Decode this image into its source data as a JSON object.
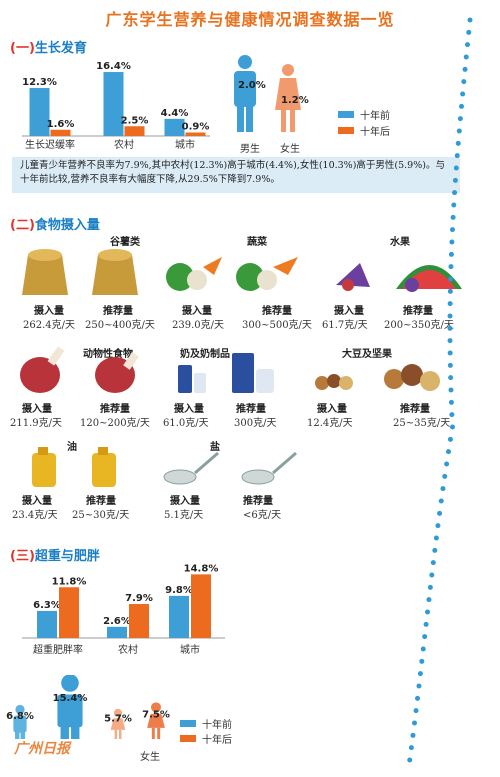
{
  "title": "广东学生营养与健康情况调查数据一览",
  "colors": {
    "before": "#3d9fd6",
    "after": "#ed6b1f",
    "heading": "#1a7fc4",
    "accent": "#e8721e"
  },
  "legend": {
    "before": "十年前",
    "after": "十年后"
  },
  "sections": {
    "s1": {
      "paren_open": "(一)",
      "text": "生长发育"
    },
    "s2": {
      "paren_open": "(二)",
      "text": "食物摄入量"
    },
    "s3": {
      "paren_open": "(三)",
      "text": "超重与肥胖"
    }
  },
  "note": "儿童青少年营养不良率为7.9%,其中农村(12.3%)高于城市(4.4%),女性(10.3%)高于男性(5.9%)。与十年前比较,营养不良率有大幅度下降,从29.5%下降到7.9%。",
  "chart_data": [
    {
      "type": "bar",
      "categories": [
        "生长迟缓率",
        "农村",
        "城市"
      ],
      "series": [
        {
          "name": "十年前",
          "values": [
            12.3,
            16.4,
            4.4
          ]
        },
        {
          "name": "十年后",
          "values": [
            1.6,
            2.5,
            0.9
          ]
        }
      ],
      "value_labels": [
        [
          "12.3%",
          "16.4%",
          "4.4%"
        ],
        [
          "1.6%",
          "2.5%",
          "0.9%"
        ]
      ]
    },
    {
      "type": "bar",
      "categories": [
        "男生",
        "女生"
      ],
      "series": [
        {
          "name": "",
          "values": [
            2.0,
            1.2
          ]
        }
      ],
      "value_labels": [
        "2.0%",
        "1.2%"
      ]
    },
    {
      "type": "bar",
      "categories": [
        "超重肥胖率",
        "农村",
        "城市"
      ],
      "series": [
        {
          "name": "十年前",
          "values": [
            6.3,
            2.6,
            9.8
          ]
        },
        {
          "name": "十年后",
          "values": [
            11.8,
            7.9,
            14.8
          ]
        }
      ],
      "value_labels": [
        [
          "6.3%",
          "2.6%",
          "9.8%"
        ],
        [
          "11.8%",
          "7.9%",
          "14.8%"
        ]
      ]
    },
    {
      "type": "bar",
      "categories": [
        "",
        "女生"
      ],
      "series": [
        {
          "name": "十年前",
          "values": [
            6.8,
            5.7
          ]
        },
        {
          "name": "十年后",
          "values": [
            15.4,
            7.5
          ]
        }
      ],
      "value_labels": [
        [
          "6.8%",
          "5.7%"
        ],
        [
          "15.4%",
          "7.5%"
        ]
      ]
    }
  ],
  "food": {
    "grain": {
      "name": "谷薯类",
      "intake_label": "摄入量",
      "intake": "262.4克/天",
      "rec_label": "推荐量",
      "rec": "250~400克/天"
    },
    "veg": {
      "name": "蔬菜",
      "intake_label": "摄入量",
      "intake": "239.0克/天",
      "rec_label": "推荐量",
      "rec": "300~500克/天"
    },
    "fruit": {
      "name": "水果",
      "intake_label": "摄入量",
      "intake": "61.7克/天",
      "rec_label": "推荐量",
      "rec": "200~350克/天"
    },
    "meat": {
      "name": "动物性食物",
      "intake_label": "摄入量",
      "intake": "211.9克/天",
      "rec_label": "推荐量",
      "rec": "120~200克/天"
    },
    "milk": {
      "name": "奶及奶制品",
      "intake_label": "摄入量",
      "intake": "61.0克/天",
      "rec_label": "推荐量",
      "rec": "300克/天"
    },
    "bean": {
      "name": "大豆及坚果",
      "intake_label": "摄入量",
      "intake": "12.4克/天",
      "rec_label": "推荐量",
      "rec": "25~35克/天"
    },
    "oil": {
      "name": "油",
      "intake_label": "摄入量",
      "intake": "23.4克/天",
      "rec_label": "推荐量",
      "rec": "25~30克/天"
    },
    "salt": {
      "name": "盐",
      "intake_label": "摄入量",
      "intake": "5.1克/天",
      "rec_label": "推荐量",
      "rec": "<6克/天"
    }
  },
  "watermark": "广州日报"
}
